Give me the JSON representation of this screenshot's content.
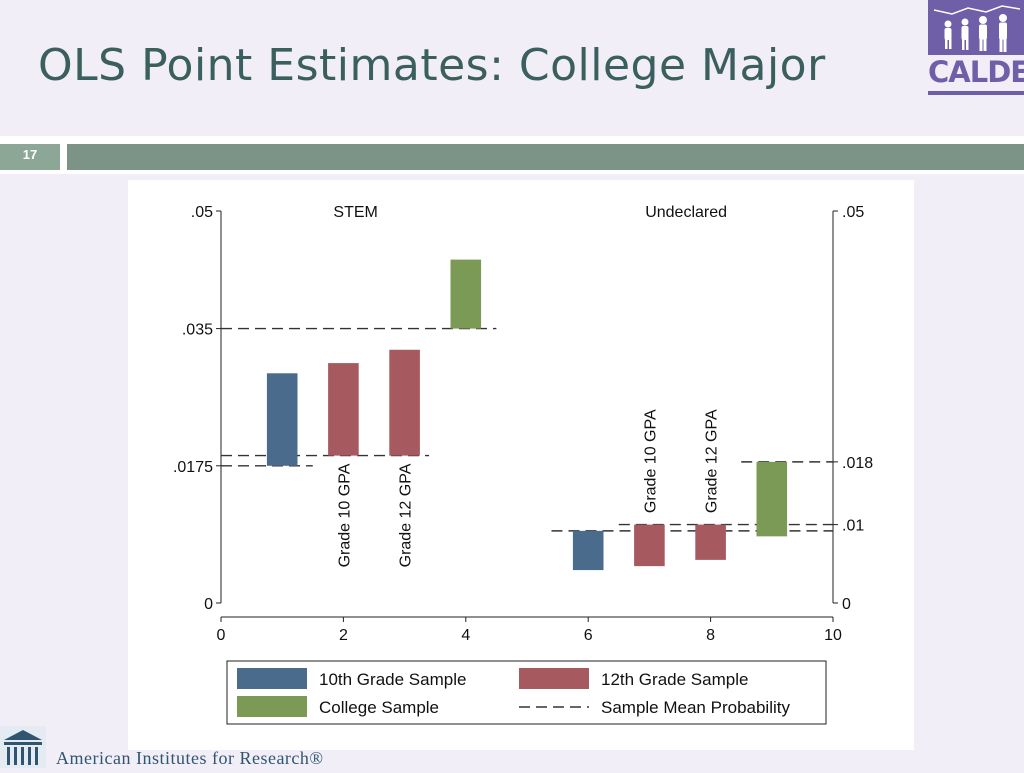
{
  "slide": {
    "title": "OLS Point Estimates: College Major",
    "number": "17",
    "logo_text": "CALDER",
    "footer": "American Institutes for Research®",
    "colors": {
      "title": "#3a5f5e",
      "background": "#f1eef8",
      "bar_band": "#7c9487",
      "number_box": "#8da796",
      "logo": "#6e5fa8"
    }
  },
  "chart_data": {
    "type": "bar",
    "panels": [
      {
        "label": "STEM",
        "yaxis_side": "left",
        "yticks": [
          {
            "value": 0,
            "label": "0"
          },
          {
            "value": 0.0175,
            "label": ".0175"
          },
          {
            "value": 0.035,
            "label": ".035"
          },
          {
            "value": 0.05,
            "label": ".05"
          }
        ]
      },
      {
        "label": "Undeclared",
        "yaxis_side": "right",
        "yticks": [
          {
            "value": 0,
            "label": "0"
          },
          {
            "value": 0.01,
            "label": ".01"
          },
          {
            "value": 0.018,
            "label": ".018"
          },
          {
            "value": 0.05,
            "label": ".05"
          }
        ]
      }
    ],
    "xlim": [
      0,
      10
    ],
    "ylim": [
      0,
      0.05
    ],
    "xticks": [
      {
        "value": 0,
        "label": "0"
      },
      {
        "value": 2,
        "label": "2"
      },
      {
        "value": 4,
        "label": "4"
      },
      {
        "value": 6,
        "label": "6"
      },
      {
        "value": 8,
        "label": "8"
      },
      {
        "value": 10,
        "label": "10"
      }
    ],
    "series": [
      {
        "name": "10th Grade Sample",
        "color": "#4a6b8c"
      },
      {
        "name": "12th Grade Sample",
        "color": "#a65a60"
      },
      {
        "name": "College Sample",
        "color": "#7a9a56"
      }
    ],
    "bars": [
      {
        "x": 1,
        "low": 0.0175,
        "high": 0.0293,
        "series": 0
      },
      {
        "x": 2,
        "low": 0.0188,
        "high": 0.0306,
        "series": 1
      },
      {
        "x": 3,
        "low": 0.0188,
        "high": 0.0323,
        "series": 1
      },
      {
        "x": 4,
        "low": 0.035,
        "high": 0.0438,
        "series": 2
      },
      {
        "x": 6,
        "low": 0.0042,
        "high": 0.0092,
        "series": 0
      },
      {
        "x": 7,
        "low": 0.0047,
        "high": 0.01,
        "series": 1
      },
      {
        "x": 8,
        "low": 0.0055,
        "high": 0.01,
        "series": 1
      },
      {
        "x": 9,
        "low": 0.0085,
        "high": 0.018,
        "series": 2
      }
    ],
    "mean_lines": [
      {
        "y": 0.0175,
        "x1": 0,
        "x2": 1.5
      },
      {
        "y": 0.0188,
        "x1": 0,
        "x2": 3.4
      },
      {
        "y": 0.035,
        "x1": 0,
        "x2": 4.5
      },
      {
        "y": 0.0092,
        "x1": 5.4,
        "x2": 10
      },
      {
        "y": 0.01,
        "x1": 6.5,
        "x2": 10
      },
      {
        "y": 0.018,
        "x1": 8.5,
        "x2": 10
      }
    ],
    "annotations": [
      {
        "text": "Grade 10 GPA",
        "x": 2,
        "y_top": 0.0188
      },
      {
        "text": "Grade 12 GPA",
        "x": 3,
        "y_top": 0.0188
      },
      {
        "text": "Grade 10 GPA",
        "x": 7,
        "y_bottom": 0.0107
      },
      {
        "text": "Grade 12 GPA",
        "x": 8,
        "y_bottom": 0.0107
      }
    ],
    "legend": {
      "placement": "bottom",
      "entries": [
        {
          "label": "10th Grade Sample",
          "type": "box",
          "color": "#4a6b8c"
        },
        {
          "label": "12th Grade Sample",
          "type": "box",
          "color": "#a65a60"
        },
        {
          "label": "College Sample",
          "type": "box",
          "color": "#7a9a56"
        },
        {
          "label": "Sample Mean Probability",
          "type": "dash",
          "color": "#333333"
        }
      ]
    },
    "grid": false
  }
}
